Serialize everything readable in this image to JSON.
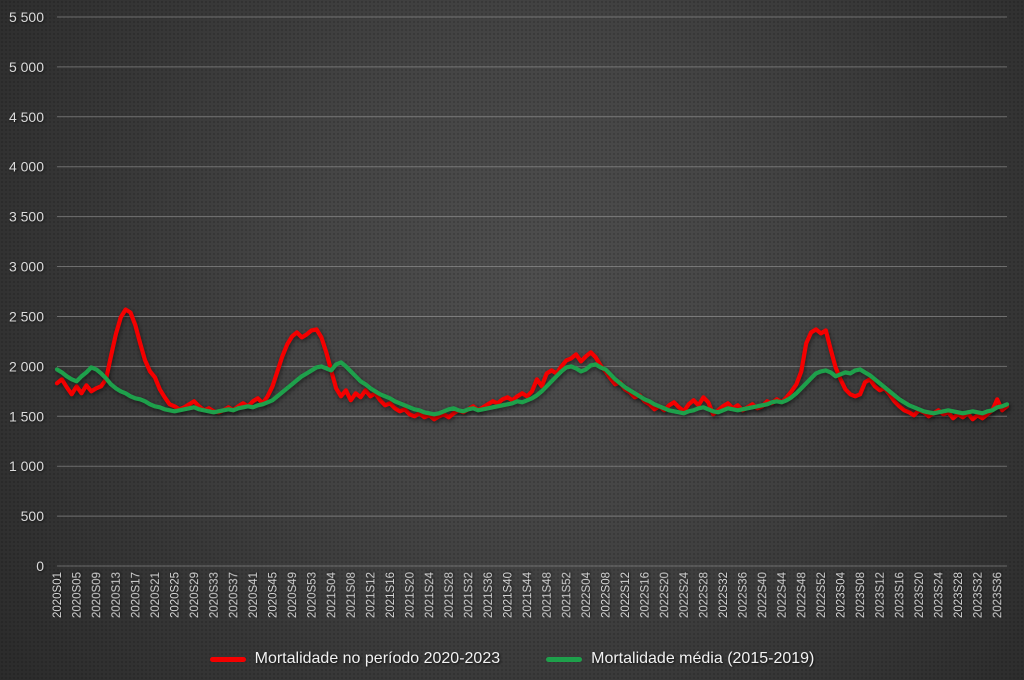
{
  "chart_data": {
    "type": "line",
    "title": "",
    "grid": "horizontal",
    "legend_position": "bottom",
    "x_axis": {
      "tick_labels": [
        "2020S01",
        "2020S05",
        "2020S09",
        "2020S13",
        "2020S17",
        "2020S21",
        "2020S25",
        "2020S29",
        "2020S33",
        "2020S37",
        "2020S41",
        "2020S45",
        "2020S49",
        "2020S53",
        "2021S04",
        "2021S08",
        "2021S12",
        "2021S16",
        "2021S20",
        "2021S24",
        "2021S28",
        "2021S32",
        "2021S36",
        "2021S40",
        "2021S44",
        "2021S48",
        "2021S52",
        "2022S04",
        "2022S08",
        "2022S12",
        "2022S16",
        "2022S20",
        "2022S24",
        "2022S28",
        "2022S32",
        "2022S36",
        "2022S40",
        "2022S44",
        "2022S48",
        "2022S52",
        "2023S04",
        "2023S08",
        "2023S12",
        "2023S16",
        "2023S20",
        "2023S24",
        "2023S28",
        "2023S32",
        "2023S36"
      ],
      "weeks_between_ticks": 4
    },
    "y_axis": {
      "min": 0,
      "max": 5500,
      "step": 500,
      "tick_labels": [
        "0",
        "500",
        "1 000",
        "1 500",
        "2 000",
        "2 500",
        "3 000",
        "3 500",
        "4 000",
        "4 500",
        "5 000",
        "5 500"
      ]
    },
    "series": [
      {
        "name": "Mortalidade no período 2020-2023",
        "color": "#f40000",
        "values": [
          1830,
          1870,
          1790,
          1720,
          1800,
          1730,
          1810,
          1750,
          1780,
          1800,
          1870,
          2100,
          2320,
          2490,
          2570,
          2540,
          2410,
          2230,
          2060,
          1950,
          1890,
          1770,
          1690,
          1620,
          1600,
          1570,
          1590,
          1620,
          1650,
          1600,
          1560,
          1580,
          1550,
          1540,
          1560,
          1590,
          1560,
          1600,
          1630,
          1600,
          1650,
          1680,
          1630,
          1700,
          1800,
          1950,
          2100,
          2220,
          2300,
          2340,
          2290,
          2320,
          2360,
          2370,
          2290,
          2140,
          1960,
          1780,
          1700,
          1760,
          1660,
          1730,
          1690,
          1760,
          1700,
          1730,
          1660,
          1610,
          1630,
          1580,
          1550,
          1570,
          1520,
          1500,
          1530,
          1490,
          1510,
          1470,
          1500,
          1520,
          1490,
          1530,
          1560,
          1540,
          1570,
          1600,
          1560,
          1590,
          1620,
          1650,
          1630,
          1670,
          1690,
          1660,
          1700,
          1730,
          1700,
          1750,
          1870,
          1800,
          1930,
          1960,
          1930,
          2000,
          2060,
          2080,
          2120,
          2050,
          2100,
          2140,
          2090,
          2010,
          1950,
          1880,
          1820,
          1840,
          1770,
          1740,
          1690,
          1710,
          1650,
          1620,
          1570,
          1600,
          1560,
          1610,
          1640,
          1590,
          1550,
          1620,
          1660,
          1610,
          1690,
          1640,
          1520,
          1560,
          1600,
          1630,
          1580,
          1610,
          1560,
          1590,
          1620,
          1580,
          1600,
          1650,
          1630,
          1670,
          1640,
          1690,
          1750,
          1820,
          1950,
          2230,
          2340,
          2370,
          2330,
          2360,
          2170,
          1990,
          1870,
          1770,
          1720,
          1700,
          1720,
          1840,
          1870,
          1800,
          1760,
          1780,
          1720,
          1650,
          1600,
          1560,
          1540,
          1510,
          1560,
          1540,
          1500,
          1530,
          1560,
          1520,
          1540,
          1480,
          1520,
          1490,
          1530,
          1470,
          1510,
          1480,
          1520,
          1560,
          1670,
          1560,
          1600
        ]
      },
      {
        "name": "Mortalidade média (2015-2019)",
        "color": "#1ea04b",
        "values": [
          1970,
          1940,
          1900,
          1870,
          1850,
          1900,
          1940,
          1990,
          1970,
          1930,
          1880,
          1820,
          1780,
          1750,
          1730,
          1700,
          1680,
          1670,
          1650,
          1620,
          1600,
          1590,
          1570,
          1560,
          1550,
          1560,
          1570,
          1580,
          1590,
          1570,
          1560,
          1550,
          1540,
          1550,
          1560,
          1570,
          1560,
          1580,
          1590,
          1600,
          1590,
          1610,
          1620,
          1640,
          1660,
          1700,
          1740,
          1780,
          1820,
          1860,
          1900,
          1930,
          1960,
          1990,
          2000,
          1980,
          1960,
          2020,
          2040,
          2000,
          1950,
          1900,
          1850,
          1820,
          1780,
          1750,
          1720,
          1700,
          1680,
          1650,
          1630,
          1610,
          1590,
          1570,
          1560,
          1540,
          1530,
          1520,
          1530,
          1550,
          1570,
          1580,
          1560,
          1550,
          1570,
          1580,
          1560,
          1570,
          1580,
          1590,
          1600,
          1610,
          1620,
          1630,
          1650,
          1640,
          1660,
          1680,
          1710,
          1750,
          1800,
          1850,
          1900,
          1950,
          1990,
          2000,
          1980,
          1950,
          1970,
          2010,
          2020,
          1990,
          1970,
          1920,
          1870,
          1830,
          1790,
          1760,
          1730,
          1700,
          1670,
          1650,
          1620,
          1600,
          1580,
          1560,
          1550,
          1540,
          1530,
          1550,
          1560,
          1580,
          1590,
          1570,
          1550,
          1540,
          1560,
          1580,
          1570,
          1560,
          1570,
          1580,
          1590,
          1600,
          1610,
          1620,
          1640,
          1650,
          1640,
          1660,
          1690,
          1730,
          1780,
          1830,
          1880,
          1930,
          1950,
          1960,
          1940,
          1900,
          1920,
          1940,
          1930,
          1960,
          1970,
          1940,
          1910,
          1870,
          1830,
          1790,
          1750,
          1710,
          1670,
          1640,
          1610,
          1590,
          1570,
          1550,
          1540,
          1530,
          1540,
          1550,
          1560,
          1550,
          1540,
          1530,
          1540,
          1550,
          1540,
          1530,
          1550,
          1560,
          1590,
          1600,
          1620
        ]
      }
    ]
  },
  "colors": {
    "background_center": "#4e4e4e",
    "background_edge": "#2b2b2b",
    "gridline": "#c8c8c8",
    "axis_text": "#dcdcdc",
    "legend_text": "#f2f2f2"
  }
}
